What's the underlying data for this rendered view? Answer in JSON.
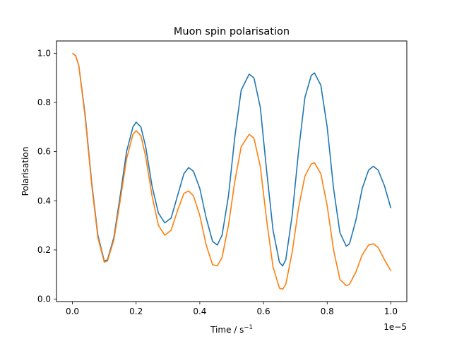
{
  "chart_data": {
    "type": "line",
    "title": "Muon spin polarisation",
    "xlabel": "Time / s",
    "xlabel_superscript": "−1",
    "ylabel": "Polarisation",
    "x_offset_text": "1e−5",
    "xlim": [
      -0.05,
      1.05
    ],
    "ylim": [
      -0.01,
      1.05
    ],
    "x_scale_note": "x values in units of 1e-5 s",
    "xticks": [
      0.0,
      0.2,
      0.4,
      0.6,
      0.8,
      1.0
    ],
    "xtick_labels": [
      "0.0",
      "0.2",
      "0.4",
      "0.6",
      "0.8",
      "1.0"
    ],
    "yticks": [
      0.0,
      0.2,
      0.4,
      0.6,
      0.8,
      1.0
    ],
    "ytick_labels": [
      "0.0",
      "0.2",
      "0.4",
      "0.6",
      "0.8",
      "1.0"
    ],
    "grid": false,
    "legend": "none",
    "series": [
      {
        "color": "#1f77b4",
        "points": [
          [
            0.0,
            1.0
          ],
          [
            0.01,
            0.99
          ],
          [
            0.02,
            0.95
          ],
          [
            0.04,
            0.75
          ],
          [
            0.06,
            0.48
          ],
          [
            0.08,
            0.26
          ],
          [
            0.1,
            0.155
          ],
          [
            0.11,
            0.16
          ],
          [
            0.13,
            0.25
          ],
          [
            0.15,
            0.42
          ],
          [
            0.17,
            0.6
          ],
          [
            0.19,
            0.7
          ],
          [
            0.2,
            0.72
          ],
          [
            0.215,
            0.7
          ],
          [
            0.23,
            0.62
          ],
          [
            0.25,
            0.46
          ],
          [
            0.27,
            0.35
          ],
          [
            0.29,
            0.31
          ],
          [
            0.31,
            0.33
          ],
          [
            0.33,
            0.42
          ],
          [
            0.35,
            0.51
          ],
          [
            0.365,
            0.535
          ],
          [
            0.38,
            0.52
          ],
          [
            0.4,
            0.45
          ],
          [
            0.42,
            0.33
          ],
          [
            0.44,
            0.235
          ],
          [
            0.455,
            0.22
          ],
          [
            0.47,
            0.26
          ],
          [
            0.49,
            0.42
          ],
          [
            0.51,
            0.66
          ],
          [
            0.53,
            0.85
          ],
          [
            0.555,
            0.915
          ],
          [
            0.57,
            0.9
          ],
          [
            0.59,
            0.78
          ],
          [
            0.61,
            0.52
          ],
          [
            0.63,
            0.28
          ],
          [
            0.65,
            0.15
          ],
          [
            0.66,
            0.135
          ],
          [
            0.67,
            0.16
          ],
          [
            0.69,
            0.34
          ],
          [
            0.71,
            0.6
          ],
          [
            0.73,
            0.82
          ],
          [
            0.75,
            0.91
          ],
          [
            0.76,
            0.92
          ],
          [
            0.78,
            0.87
          ],
          [
            0.8,
            0.7
          ],
          [
            0.82,
            0.45
          ],
          [
            0.84,
            0.27
          ],
          [
            0.86,
            0.215
          ],
          [
            0.87,
            0.225
          ],
          [
            0.89,
            0.32
          ],
          [
            0.91,
            0.45
          ],
          [
            0.93,
            0.525
          ],
          [
            0.945,
            0.54
          ],
          [
            0.96,
            0.525
          ],
          [
            0.98,
            0.46
          ],
          [
            1.0,
            0.37
          ]
        ]
      },
      {
        "color": "#ff7f0e",
        "points": [
          [
            0.0,
            1.0
          ],
          [
            0.01,
            0.99
          ],
          [
            0.02,
            0.95
          ],
          [
            0.04,
            0.74
          ],
          [
            0.06,
            0.47
          ],
          [
            0.08,
            0.25
          ],
          [
            0.1,
            0.15
          ],
          [
            0.11,
            0.155
          ],
          [
            0.13,
            0.24
          ],
          [
            0.15,
            0.4
          ],
          [
            0.17,
            0.57
          ],
          [
            0.19,
            0.67
          ],
          [
            0.2,
            0.685
          ],
          [
            0.215,
            0.665
          ],
          [
            0.23,
            0.58
          ],
          [
            0.25,
            0.42
          ],
          [
            0.27,
            0.3
          ],
          [
            0.29,
            0.26
          ],
          [
            0.31,
            0.28
          ],
          [
            0.33,
            0.36
          ],
          [
            0.35,
            0.43
          ],
          [
            0.365,
            0.44
          ],
          [
            0.38,
            0.42
          ],
          [
            0.4,
            0.34
          ],
          [
            0.42,
            0.22
          ],
          [
            0.44,
            0.14
          ],
          [
            0.455,
            0.135
          ],
          [
            0.47,
            0.17
          ],
          [
            0.49,
            0.3
          ],
          [
            0.51,
            0.48
          ],
          [
            0.53,
            0.62
          ],
          [
            0.555,
            0.67
          ],
          [
            0.57,
            0.655
          ],
          [
            0.59,
            0.54
          ],
          [
            0.61,
            0.32
          ],
          [
            0.63,
            0.13
          ],
          [
            0.65,
            0.045
          ],
          [
            0.66,
            0.04
          ],
          [
            0.67,
            0.06
          ],
          [
            0.69,
            0.19
          ],
          [
            0.71,
            0.37
          ],
          [
            0.73,
            0.5
          ],
          [
            0.75,
            0.55
          ],
          [
            0.76,
            0.555
          ],
          [
            0.78,
            0.51
          ],
          [
            0.8,
            0.38
          ],
          [
            0.82,
            0.2
          ],
          [
            0.84,
            0.08
          ],
          [
            0.86,
            0.055
          ],
          [
            0.87,
            0.06
          ],
          [
            0.89,
            0.11
          ],
          [
            0.91,
            0.18
          ],
          [
            0.93,
            0.22
          ],
          [
            0.945,
            0.225
          ],
          [
            0.96,
            0.21
          ],
          [
            0.98,
            0.16
          ],
          [
            1.0,
            0.115
          ]
        ]
      }
    ]
  }
}
